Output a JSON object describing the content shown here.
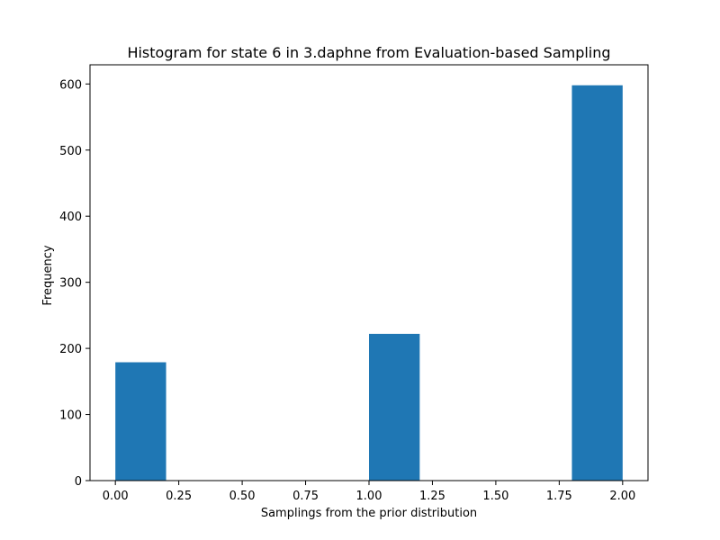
{
  "chart_data": {
    "type": "bar",
    "title": "Histogram for state 6 in 3.daphne from Evaluation-based Sampling",
    "xlabel": "Samplings from the prior distribution",
    "ylabel": "Frequency",
    "xlim": [
      -0.1,
      2.1
    ],
    "ylim": [
      0,
      629
    ],
    "x_ticks": [
      0.0,
      0.25,
      0.5,
      0.75,
      1.0,
      1.25,
      1.5,
      1.75,
      2.0
    ],
    "x_tick_labels": [
      "0.00",
      "0.25",
      "0.50",
      "0.75",
      "1.00",
      "1.25",
      "1.50",
      "1.75",
      "2.00"
    ],
    "y_ticks": [
      0,
      100,
      200,
      300,
      400,
      500,
      600
    ],
    "y_tick_labels": [
      "0",
      "100",
      "200",
      "300",
      "400",
      "500",
      "600"
    ],
    "bins": [
      {
        "x0": 0.0,
        "x1": 0.2,
        "value": 179
      },
      {
        "x0": 1.0,
        "x1": 1.2,
        "value": 222
      },
      {
        "x0": 1.8,
        "x1": 2.0,
        "value": 598
      }
    ],
    "bar_color": "#1f77b4",
    "grid": false,
    "legend": false
  }
}
